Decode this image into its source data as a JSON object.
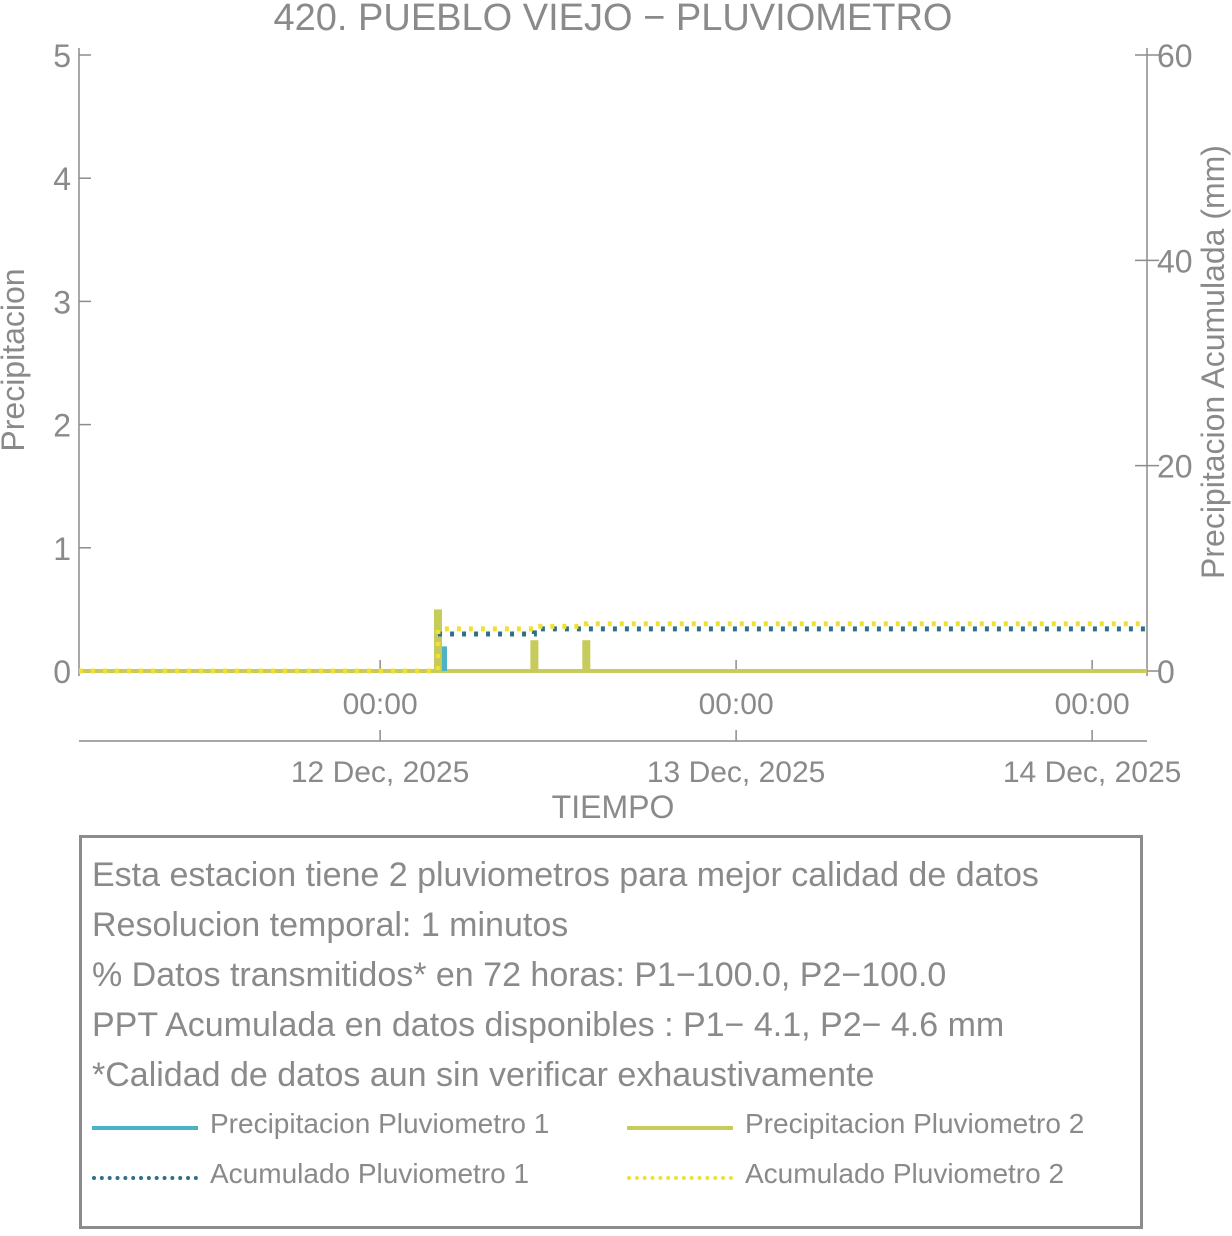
{
  "chart_data": {
    "type": "bar",
    "title": "420. PUEBLO VIEJO − PLUVIOMETRO",
    "xlabel": "TIEMPO",
    "ylabel_left": "Precipitacion",
    "ylabel_right": "Precipitacion Acumulada (mm)",
    "ylim_left": [
      0,
      5
    ],
    "ylim_right": [
      0,
      60
    ],
    "yticks_left": [
      "0",
      "1",
      "2",
      "3",
      "4",
      "5"
    ],
    "yticks_right": [
      "0",
      "20",
      "40",
      "60"
    ],
    "xlim_hours": [
      -20.3,
      51.7
    ],
    "xticks": [
      {
        "hour": 0,
        "time": "00:00",
        "date": "12 Dec, 2025"
      },
      {
        "hour": 24,
        "time": "00:00",
        "date": "13 Dec, 2025"
      },
      {
        "hour": 48,
        "time": "00:00",
        "date": "14 Dec, 2025"
      }
    ],
    "grid": false,
    "series": [
      {
        "name": "Precipitacion Pluviometro 1",
        "kind": "bar",
        "color": "#4bb3c4",
        "points": [
          [
            3.9,
            0.2
          ]
        ]
      },
      {
        "name": "Precipitacion Pluviometro 2",
        "kind": "bar",
        "color": "#c7cb5a",
        "points": [
          [
            3.9,
            0.5
          ],
          [
            10.4,
            0.25
          ],
          [
            13.9,
            0.25
          ]
        ]
      },
      {
        "name": "Acumulado Pluviometro 1",
        "kind": "step-dotted",
        "color": "#2f6f8a",
        "points": [
          [
            -20.3,
            0
          ],
          [
            3.9,
            0
          ],
          [
            3.9,
            3.6
          ],
          [
            10.4,
            3.6
          ],
          [
            10.4,
            4.1
          ],
          [
            51.7,
            4.1
          ]
        ]
      },
      {
        "name": "Acumulado Pluviometro 2",
        "kind": "step-dotted",
        "color": "#f0e030",
        "points": [
          [
            -20.3,
            0
          ],
          [
            3.9,
            0
          ],
          [
            3.9,
            4.1
          ],
          [
            10.4,
            4.1
          ],
          [
            10.4,
            4.35
          ],
          [
            13.9,
            4.35
          ],
          [
            13.9,
            4.6
          ],
          [
            51.7,
            4.6
          ]
        ]
      }
    ]
  },
  "info": {
    "lines": [
      "Esta estacion tiene 2 pluviometros para mejor calidad de datos",
      "Resolucion temporal: 1 minutos",
      "% Datos transmitidos* en 72 horas: P1−100.0, P2−100.0",
      "PPT Acumulada en datos disponibles : P1−  4.1, P2−  4.6 mm",
      "*Calidad de datos aun sin verificar exhaustivamente"
    ]
  },
  "legend": {
    "items": [
      {
        "label": "Precipitacion Pluviometro 1",
        "color": "#4bb3c4",
        "style": "solid"
      },
      {
        "label": "Precipitacion Pluviometro 2",
        "color": "#c7cb5a",
        "style": "solid"
      },
      {
        "label": "Acumulado Pluviometro 1",
        "color": "#2f6f8a",
        "style": "dotted"
      },
      {
        "label": "Acumulado Pluviometro 2",
        "color": "#f0e030",
        "style": "dotted"
      }
    ]
  }
}
